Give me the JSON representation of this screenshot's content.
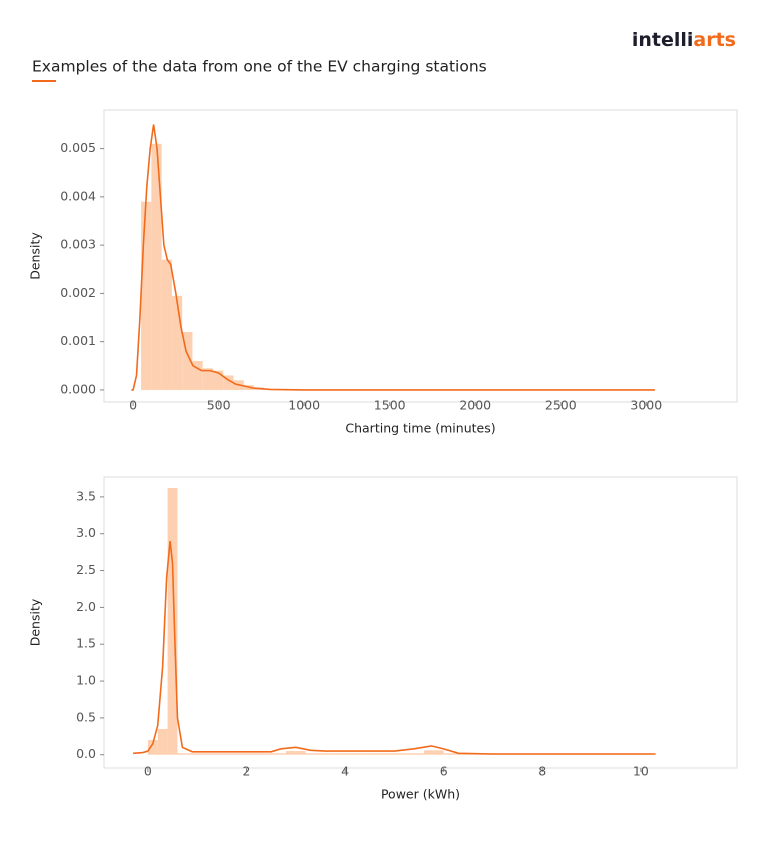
{
  "header": {
    "logo": [
      "intelli",
      "arts"
    ],
    "title": "Examples of the data from one of the EV charging stations"
  },
  "chart_data": [
    {
      "type": "histogram",
      "xlabel": "Charting time (minutes)",
      "ylabel": "Density",
      "color": "#fdd0b1",
      "line_color": "#f26a1b",
      "bins": [
        47,
        107,
        167,
        227,
        287,
        347,
        407,
        467,
        527,
        587,
        647,
        707,
        767,
        827,
        887,
        947,
        1007,
        1067,
        1127,
        1187,
        1247,
        1307,
        1367,
        1427,
        1487,
        1547,
        1607,
        1667,
        1727,
        1787,
        1847,
        1907,
        1967,
        2027,
        2087,
        2147,
        2207,
        2267,
        2327,
        2387,
        2447,
        2507,
        2567,
        2627,
        2687,
        2747,
        2807,
        2867,
        2927,
        2987,
        3047
      ],
      "values": [
        0.0039,
        0.0051,
        0.0027,
        0.00195,
        0.0012,
        0.0006,
        0.00045,
        0.0004,
        0.0003,
        0.0002,
        0.0001,
        5e-05,
        0,
        0,
        0,
        0,
        0,
        0,
        0,
        0,
        0,
        0,
        0,
        0,
        0,
        0,
        0,
        0,
        0,
        0,
        0,
        0,
        0,
        0,
        0,
        0,
        0,
        0,
        0,
        0,
        0,
        0,
        0,
        0,
        0,
        0,
        0,
        0,
        0,
        0
      ],
      "kde": {
        "x": [
          -10,
          0,
          20,
          40,
          60,
          80,
          100,
          120,
          140,
          160,
          180,
          200,
          220,
          250,
          280,
          310,
          350,
          400,
          450,
          500,
          550,
          600,
          700,
          800,
          1000,
          3050
        ],
        "y": [
          0,
          0,
          0.0003,
          0.0015,
          0.003,
          0.0042,
          0.005,
          0.0055,
          0.005,
          0.004,
          0.003,
          0.0027,
          0.0026,
          0.002,
          0.0013,
          0.0008,
          0.0005,
          0.0004,
          0.0004,
          0.00035,
          0.00022,
          0.00012,
          4e-05,
          1e-05,
          0,
          0
        ]
      },
      "xlim": [
        -170,
        3530
      ],
      "ylim": [
        -0.00025,
        0.0058
      ],
      "xticks": [
        0,
        500,
        1000,
        1500,
        2000,
        2500,
        3000
      ],
      "yticks": [
        {
          "value": 0,
          "label": "0.000"
        },
        {
          "value": 0.001,
          "label": "0.001"
        },
        {
          "value": 0.002,
          "label": "0.002"
        },
        {
          "value": 0.003,
          "label": "0.003"
        },
        {
          "value": 0.004,
          "label": "0.004"
        },
        {
          "value": 0.005,
          "label": "0.005"
        }
      ]
    },
    {
      "type": "histogram",
      "xlabel": "Power (kWh)",
      "ylabel": "Density",
      "color": "#fdd0b1",
      "line_color": "#f26a1b",
      "bins": [
        0,
        0.2,
        0.4,
        0.6,
        0.8,
        1,
        1.2,
        1.4,
        1.6,
        1.8,
        2,
        2.2,
        2.4,
        2.6,
        2.8,
        3,
        3.2,
        3.4,
        3.6,
        3.8,
        4,
        4.2,
        4.4,
        4.6,
        4.8,
        5,
        5.2,
        5.4,
        5.6,
        5.8,
        6,
        6.2,
        6.4,
        6.6,
        6.8,
        7,
        7.2,
        7.4,
        7.6,
        7.8,
        8,
        8.2,
        8.4,
        8.6,
        8.8,
        9,
        9.2,
        9.4,
        9.6,
        9.8,
        10,
        10.2
      ],
      "values": [
        0.2,
        0.35,
        3.62,
        0.02,
        0.02,
        0.02,
        0.02,
        0.02,
        0.02,
        0.02,
        0.02,
        0.02,
        0.02,
        0.02,
        0.05,
        0.05,
        0.02,
        0.02,
        0.02,
        0.02,
        0.02,
        0.02,
        0.02,
        0.02,
        0.02,
        0.02,
        0.02,
        0.02,
        0.06,
        0.06,
        0.02,
        0.02,
        0.02,
        0.02,
        0.02,
        0.02,
        0.02,
        0.02,
        0.02,
        0.02,
        0.02,
        0.02,
        0.02,
        0.02,
        0.02,
        0.02,
        0.02,
        0.02,
        0.02,
        0.02,
        0.02
      ],
      "kde": {
        "x": [
          -0.3,
          -0.1,
          0,
          0.1,
          0.2,
          0.3,
          0.38,
          0.45,
          0.5,
          0.55,
          0.6,
          0.7,
          0.9,
          2.5,
          2.7,
          3,
          3.3,
          3.6,
          5,
          5.4,
          5.75,
          6,
          6.3,
          7,
          10.3
        ],
        "y": [
          0.02,
          0.03,
          0.05,
          0.15,
          0.4,
          1.2,
          2.4,
          2.9,
          2.6,
          1.5,
          0.5,
          0.1,
          0.04,
          0.04,
          0.08,
          0.1,
          0.06,
          0.05,
          0.05,
          0.08,
          0.12,
          0.08,
          0.02,
          0.01,
          0.01
        ]
      },
      "xlim": [
        -0.89,
        11.95
      ],
      "ylim": [
        -0.18,
        3.77
      ],
      "xticks": [
        0,
        2,
        4,
        6,
        8,
        10
      ],
      "yticks": [
        {
          "value": 0,
          "label": "0.0"
        },
        0.5,
        {
          "value": 1,
          "label": "1.0"
        },
        1.5,
        {
          "value": 2,
          "label": "2.0"
        },
        2.5,
        {
          "value": 3,
          "label": "3.0"
        },
        3.5
      ]
    }
  ]
}
